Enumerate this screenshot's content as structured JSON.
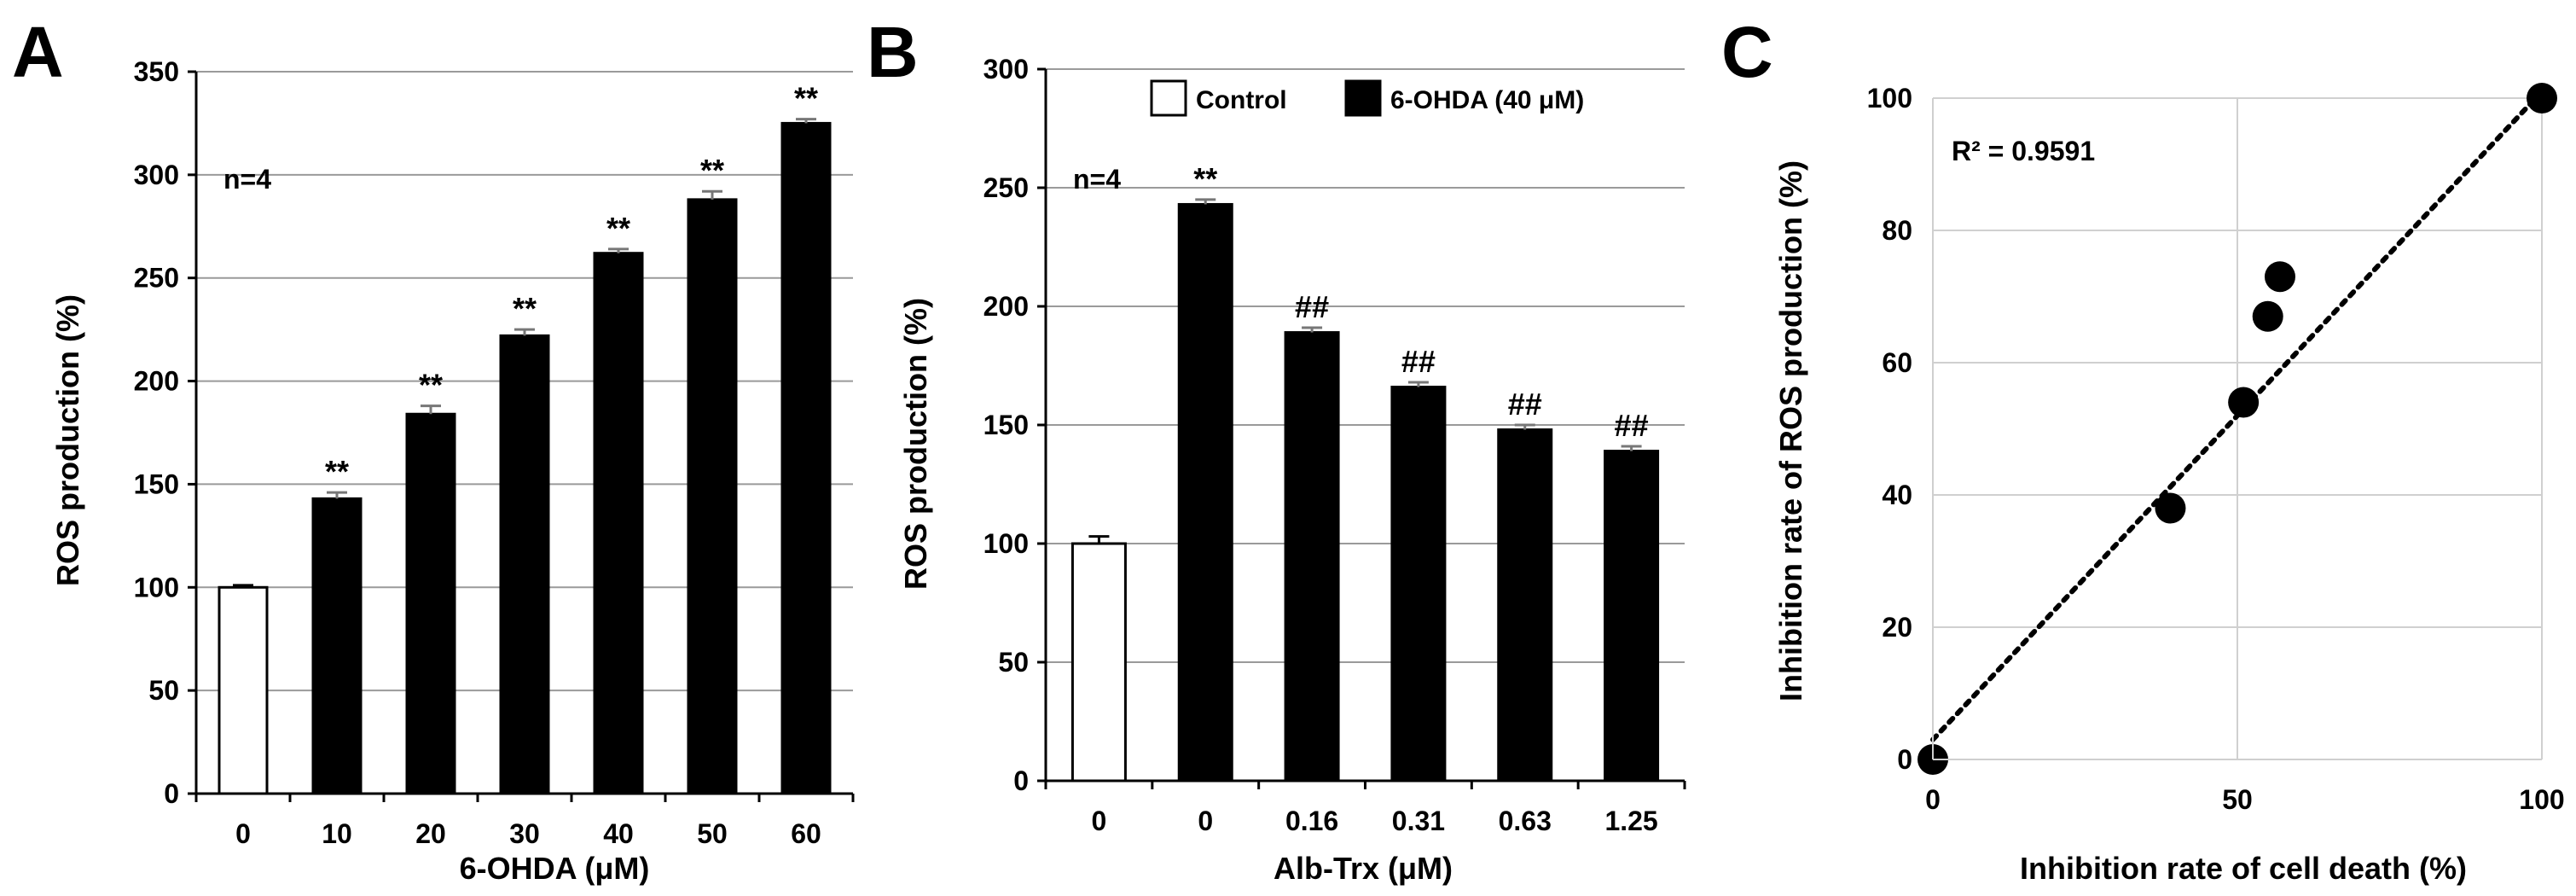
{
  "chart_data": [
    {
      "panel": "A",
      "type": "bar",
      "categories": [
        "0",
        "10",
        "20",
        "30",
        "40",
        "50",
        "60"
      ],
      "values": [
        100,
        143,
        184,
        222,
        262,
        288,
        325
      ],
      "errors": [
        1,
        3,
        4,
        3,
        2,
        4,
        2
      ],
      "fill": [
        "white",
        "black",
        "black",
        "black",
        "black",
        "black",
        "black"
      ],
      "significance": [
        "",
        "**",
        "**",
        "**",
        "**",
        "**",
        "**"
      ],
      "annotation": "n=4",
      "xlabel": "6-OHDA (μM)",
      "ylabel": "ROS production (%)",
      "ylim": [
        0,
        350
      ],
      "yticks": [
        0,
        50,
        100,
        150,
        200,
        250,
        300,
        350
      ],
      "grid": true
    },
    {
      "panel": "B",
      "type": "bar",
      "categories": [
        "0",
        "0",
        "0.16",
        "0.31",
        "0.63",
        "1.25"
      ],
      "values": [
        100,
        243,
        189,
        166,
        148,
        139
      ],
      "errors": [
        3,
        2,
        2,
        2,
        2,
        2
      ],
      "fill": [
        "white",
        "black",
        "black",
        "black",
        "black",
        "black"
      ],
      "significance": [
        "",
        "**",
        "##",
        "##",
        "##",
        "##"
      ],
      "annotation": "n=4",
      "xlabel": "Alb-Trx (μM)",
      "ylabel": "ROS production (%)",
      "ylim": [
        0,
        300
      ],
      "yticks": [
        0,
        50,
        100,
        150,
        200,
        250,
        300
      ],
      "legend": [
        {
          "label": "Control",
          "fill": "white"
        },
        {
          "label": "6-OHDA (40 μM)",
          "fill": "black"
        }
      ],
      "legend_position": "top-right",
      "grid": true
    },
    {
      "panel": "C",
      "type": "scatter",
      "points": [
        {
          "x": 0,
          "y": 0
        },
        {
          "x": 39,
          "y": 38
        },
        {
          "x": 51,
          "y": 54
        },
        {
          "x": 55,
          "y": 67
        },
        {
          "x": 57,
          "y": 73
        },
        {
          "x": 100,
          "y": 100
        }
      ],
      "trendline": {
        "x": [
          0,
          100
        ],
        "y": [
          3,
          101
        ]
      },
      "annotation": "R² = 0.9591",
      "xlabel": "Inhibition rate of cell death (%)",
      "ylabel": "Inhibition rate of ROS production (%)",
      "xlim": [
        0,
        100
      ],
      "ylim": [
        0,
        100
      ],
      "xticks": [
        0,
        50,
        100
      ],
      "yticks": [
        0,
        20,
        40,
        60,
        80,
        100
      ],
      "grid": true
    }
  ]
}
